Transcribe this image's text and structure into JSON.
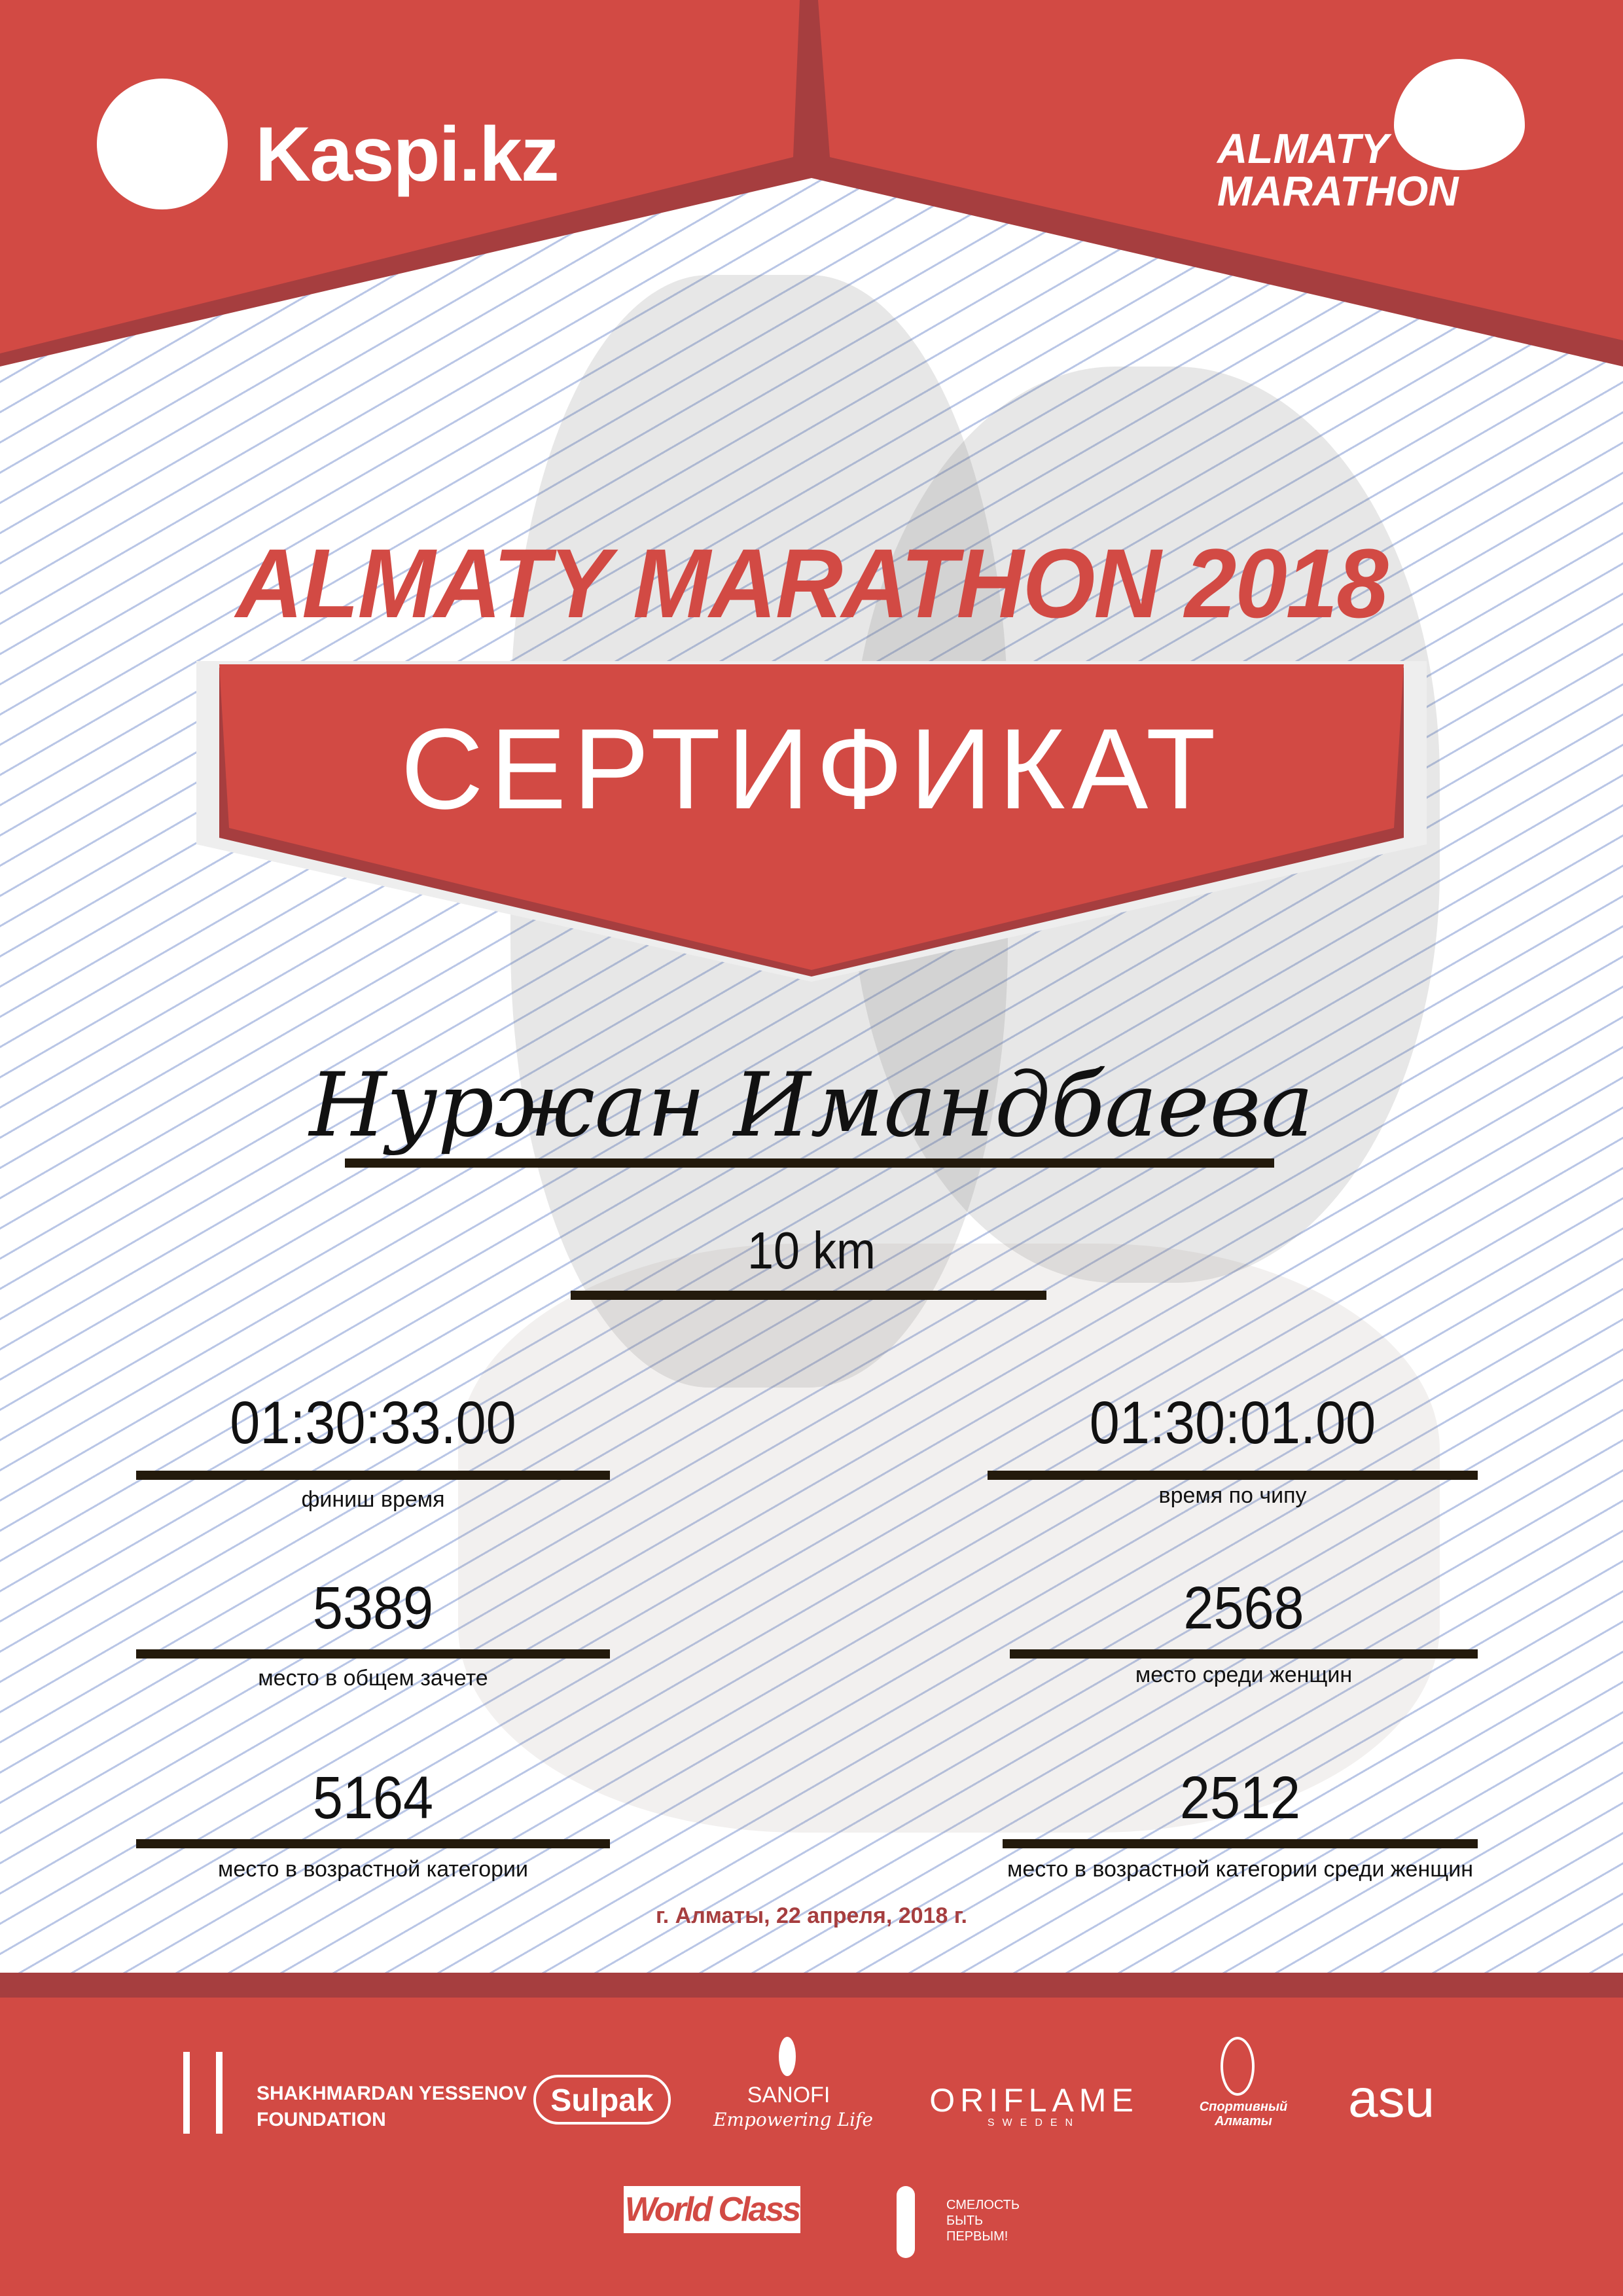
{
  "header": {
    "sponsor_logo": "Kaspi.kz",
    "event_logo_line1": "ALMATY",
    "event_logo_line2": "MARATHON"
  },
  "title": "ALMATY MARATHON 2018",
  "banner": "СЕРТИФИКАТ",
  "participant_name": "Нуржан Имандбаева",
  "distance": "10 km",
  "results": {
    "finish_time": {
      "value": "01:30:33.00",
      "label": "финиш время"
    },
    "chip_time": {
      "value": "01:30:01.00",
      "label": "время по чипу"
    },
    "overall_place": {
      "value": "5389",
      "label": "место в общем зачете"
    },
    "women_place": {
      "value": "2568",
      "label": "место среди женщин"
    },
    "age_place": {
      "value": "5164",
      "label": "место в возрастной категории"
    },
    "age_women_place": {
      "value": "2512",
      "label": "место в возрастной категории среди женщин"
    }
  },
  "date_line": "г. Алматы, 22 апреля, 2018 г.",
  "footer": {
    "partners": {
      "yessenov_line1": "SHAKHMARDAN YESSENOV",
      "yessenov_line2": "FOUNDATION",
      "sulpak": "Sulpak",
      "sanofi": "SANOFI",
      "sanofi_tagline": "Empowering Life",
      "oriflame": "ORIFLAME",
      "oriflame_sub": "SWEDEN",
      "sport_almaty": "Спортивный Алматы",
      "asu": "asu",
      "worldclass": "World Class",
      "courage_line1": "СМЕЛОСТЬ",
      "courage_line2": "БЫТЬ",
      "courage_line3": "ПЕРВЫМ!"
    }
  },
  "colors": {
    "primary_red": "#d24a44",
    "dark_red": "#a63e3f",
    "rule": "#231a0c"
  }
}
